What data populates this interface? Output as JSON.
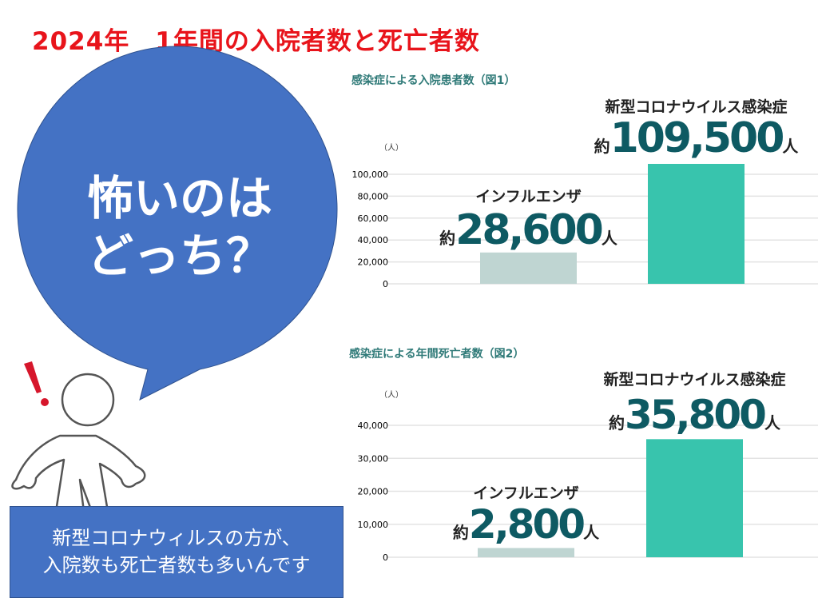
{
  "slide": {
    "title": "2024年　1年間の入院者数と死亡者数",
    "bubble_lines": [
      "怖いのは",
      "どっち？"
    ],
    "summary_lines": [
      "新型コロナウィルスの方が、",
      "入院数も死亡者数も多いんです"
    ]
  },
  "colors": {
    "title": "#e8141b",
    "bubble": "#4472c4",
    "flu_bar": "#bfd5d2",
    "covid_bar": "#38c4ad",
    "number": "#0e5a63"
  },
  "chart_data": [
    {
      "type": "bar",
      "title": "感染症による入院患者数（図1）",
      "ylabel": "（人）",
      "ylim": [
        0,
        100000
      ],
      "yticks": [
        0,
        20000,
        40000,
        60000,
        80000,
        100000
      ],
      "ytick_labels": [
        "0",
        "20,000",
        "40,000",
        "60,000",
        "80,000",
        "100,000"
      ],
      "categories": [
        "インフルエンザ",
        "新型コロナウイルス感染症"
      ],
      "values": [
        28600,
        109500
      ],
      "value_labels": [
        "28,600",
        "109,500"
      ],
      "prefix": "約",
      "suffix": "人"
    },
    {
      "type": "bar",
      "title": "感染症による年間死亡者数（図2）",
      "ylabel": "（人）",
      "ylim": [
        0,
        40000
      ],
      "yticks": [
        0,
        10000,
        20000,
        30000,
        40000
      ],
      "ytick_labels": [
        "0",
        "10,000",
        "20,000",
        "30,000",
        "40,000"
      ],
      "categories": [
        "インフルエンザ",
        "新型コロナウイルス感染症"
      ],
      "values": [
        2800,
        35800
      ],
      "value_labels": [
        "2,800",
        "35,800"
      ],
      "prefix": "約",
      "suffix": "人"
    }
  ]
}
